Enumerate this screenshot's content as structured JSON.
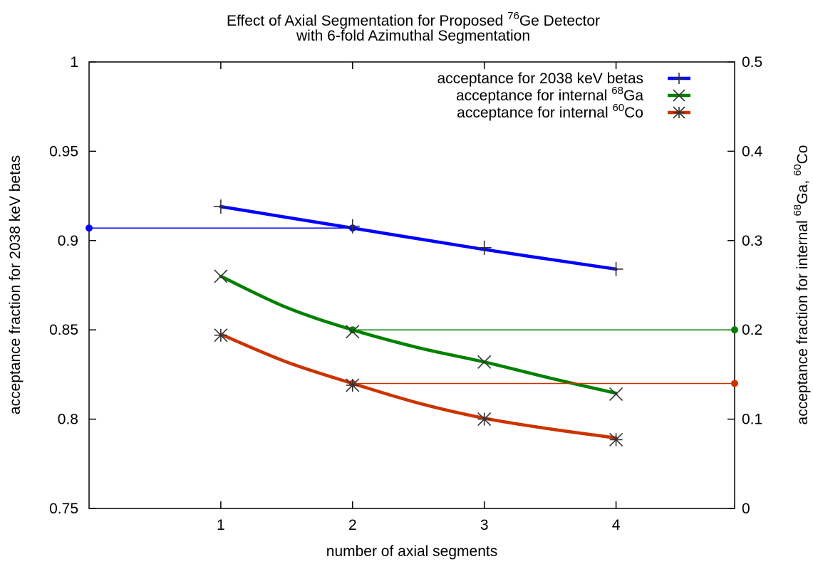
{
  "chart_data": {
    "type": "line",
    "title": {
      "line1": {
        "a": "Effect of Axial Segmentation for Proposed ",
        "sup": "76",
        "b": "Ge Detector"
      },
      "line2": "with 6-fold Azimuthal Segmentation"
    },
    "xlabel": "number of axial segments",
    "ylabel": "acceptance fraction for 2038 keV betas",
    "y2label": {
      "a": "acceptance fraction for internal ",
      "sup1": "68",
      "b": "Ga, ",
      "sup2": "60",
      "c": "Co"
    },
    "xlim": [
      0,
      4.9
    ],
    "ylim": [
      0.75,
      1.0
    ],
    "y2lim": [
      0,
      0.5
    ],
    "x_ticks": [
      "1",
      "2",
      "3",
      "4"
    ],
    "y_ticks": [
      "0.75",
      "0.8",
      "0.85",
      "0.9",
      "0.95",
      "1"
    ],
    "y2_ticks": [
      "0",
      "0.1",
      "0.2",
      "0.3",
      "0.4",
      "0.5"
    ],
    "legend_position": "top-right",
    "series": [
      {
        "name": {
          "a": "acceptance for 2038 keV betas",
          "sup": "",
          "b": ""
        },
        "axis": "left",
        "color": "#0000ff",
        "marker": "plus",
        "points": [
          [
            1,
            0.919
          ],
          [
            2,
            0.908
          ],
          [
            3,
            0.896
          ],
          [
            4,
            0.884
          ]
        ],
        "fit": [
          [
            1,
            0.919
          ],
          [
            2,
            0.907
          ],
          [
            3,
            0.895
          ],
          [
            4,
            0.884
          ]
        ],
        "reference": {
          "x": 2,
          "y": 0.907,
          "to_x": 0,
          "to_axis": "left"
        }
      },
      {
        "name": {
          "a": "acceptance for internal ",
          "sup": "68",
          "b": "Ga"
        },
        "axis": "right",
        "color": "#008000",
        "marker": "cross",
        "points": [
          [
            1,
            0.26
          ],
          [
            2,
            0.198
          ],
          [
            3,
            0.164
          ],
          [
            4,
            0.128
          ]
        ],
        "fit": [
          [
            1,
            0.26
          ],
          [
            1.5,
            0.225
          ],
          [
            2,
            0.2
          ],
          [
            2.5,
            0.18
          ],
          [
            3,
            0.164
          ],
          [
            3.5,
            0.146
          ],
          [
            4,
            0.129
          ]
        ],
        "reference": {
          "x": 2,
          "y": 0.2,
          "to_x": 4.9,
          "to_axis": "right"
        }
      },
      {
        "name": {
          "a": "acceptance for internal ",
          "sup": "60",
          "b": "Co"
        },
        "axis": "right",
        "color": "#cc3300",
        "marker": "star",
        "points": [
          [
            1,
            0.194
          ],
          [
            2,
            0.138
          ],
          [
            3,
            0.1
          ],
          [
            4,
            0.077
          ]
        ],
        "fit": [
          [
            1,
            0.195
          ],
          [
            1.5,
            0.164
          ],
          [
            2,
            0.14
          ],
          [
            2.5,
            0.118
          ],
          [
            3,
            0.101
          ],
          [
            3.5,
            0.089
          ],
          [
            4,
            0.079
          ]
        ],
        "reference": {
          "x": 2,
          "y": 0.14,
          "to_x": 4.9,
          "to_axis": "right"
        }
      }
    ]
  }
}
